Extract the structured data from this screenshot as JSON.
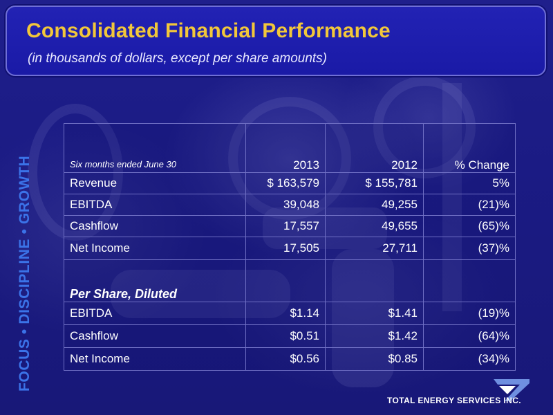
{
  "header": {
    "title": "Consolidated Financial Performance",
    "subtitle": "(in thousands of dollars, except per share amounts)"
  },
  "side_tagline": "FOCUS • DISCIPLINE • GROWTH",
  "table": {
    "header": {
      "period_label": "Six months ended June 30",
      "col_2013": "2013",
      "col_2012": "2012",
      "col_change": "% Change"
    },
    "rows": [
      {
        "label": "Revenue",
        "v2013": "$ 163,579",
        "v2012": "$ 155,781",
        "change": "5%"
      },
      {
        "label": "EBITDA",
        "v2013": "39,048",
        "v2012": "49,255",
        "change": "(21)%"
      },
      {
        "label": "Cashflow",
        "v2013": "17,557",
        "v2012": "49,655",
        "change": "(65)%"
      },
      {
        "label": "Net Income",
        "v2013": "17,505",
        "v2012": "27,711",
        "change": "(37)%"
      }
    ],
    "per_share_section": "Per Share, Diluted",
    "per_share_rows": [
      {
        "label": "EBITDA",
        "v2013": "$1.14",
        "v2012": "$1.41",
        "change": "(19)%"
      },
      {
        "label": "Cashflow",
        "v2013": "$0.51",
        "v2012": "$1.42",
        "change": "(64)%"
      },
      {
        "label": "Net Income",
        "v2013": "$0.56",
        "v2012": "$0.85",
        "change": "(34)%"
      }
    ]
  },
  "logo": {
    "text": "TOTAL ENERGY SERVICES INC.",
    "icon": "total-energy-logo-icon"
  },
  "colors": {
    "title": "#f2c73a",
    "background": "#1a1a80",
    "tagline": "#3b73e8",
    "text": "#ffffff"
  }
}
